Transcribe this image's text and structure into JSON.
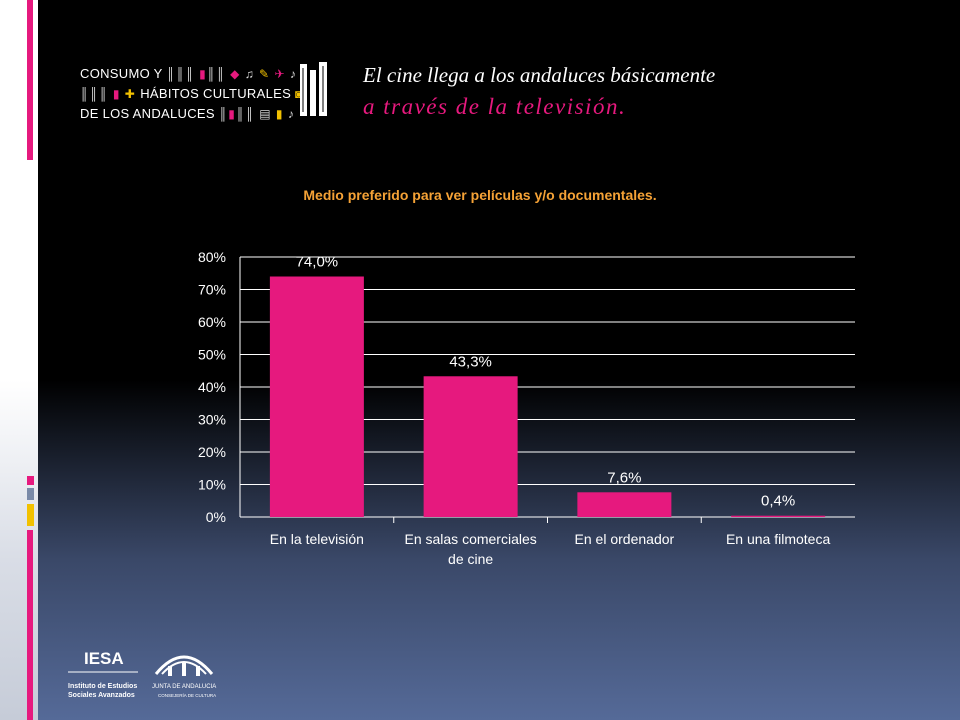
{
  "header": {
    "logo": {
      "line1": "CONSUMO Y",
      "line2": "HÁBITOS CULTURALES",
      "line3": "DE LOS ANDALUCES"
    },
    "title_line1": "El cine llega a los andaluces básicamente",
    "title_line2": "a través de la televisión."
  },
  "colors": {
    "accent": "#e6197e",
    "chart_title": "#f5a236",
    "bar": "#e6197e",
    "gridline": "#ffffff",
    "text": "#ffffff"
  },
  "chart_data": {
    "type": "bar",
    "title": "Medio preferido para ver películas y/o documentales.",
    "categories": [
      [
        "En la televisión"
      ],
      [
        "En salas comerciales",
        "de cine"
      ],
      [
        "En el ordenador"
      ],
      [
        "En una filmoteca"
      ]
    ],
    "values": [
      74.0,
      43.3,
      7.6,
      0.4
    ],
    "value_labels": [
      "74,0%",
      "43,3%",
      "7,6%",
      "0,4%"
    ],
    "yticks": [
      "0%",
      "10%",
      "20%",
      "30%",
      "40%",
      "50%",
      "60%",
      "70%",
      "80%"
    ],
    "ylim": [
      0,
      80
    ],
    "grid": true
  },
  "footer": {
    "iesa_name": "IESA",
    "iesa_sub1": "Instituto de Estudios",
    "iesa_sub2": "Sociales Avanzados",
    "junta_name": "JUNTA DE ANDALUCIA",
    "junta_sub": "CONSEJERÍA DE CULTURA"
  }
}
